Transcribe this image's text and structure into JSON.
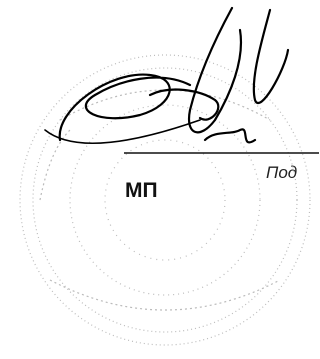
{
  "signature_line": {
    "caption": "Под"
  },
  "stamp": {
    "label": "МП"
  }
}
